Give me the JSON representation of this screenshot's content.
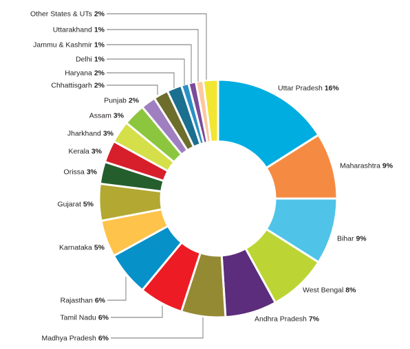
{
  "chart_data": {
    "type": "pie",
    "style": "donut",
    "title": "",
    "legend": "none",
    "grid": false,
    "slices": [
      {
        "label": "Uttar Pradesh",
        "value": 16,
        "display": "16%",
        "color": "#00ade0"
      },
      {
        "label": "Maharashtra",
        "value": 9,
        "display": "9%",
        "color": "#f58b42"
      },
      {
        "label": "Bihar",
        "value": 9,
        "display": "9%",
        "color": "#4fc4e8"
      },
      {
        "label": "West Bengal",
        "value": 8,
        "display": "8%",
        "color": "#bcd534"
      },
      {
        "label": "Andhra Pradesh",
        "value": 7,
        "display": "7%",
        "color": "#5b2d7c"
      },
      {
        "label": "Madhya Pradesh",
        "value": 6,
        "display": "6%",
        "color": "#958a34"
      },
      {
        "label": "Tamil Nadu",
        "value": 6,
        "display": "6%",
        "color": "#ed1c24"
      },
      {
        "label": "Rajasthan",
        "value": 6,
        "display": "6%",
        "color": "#0791c9"
      },
      {
        "label": "Karnataka",
        "value": 5,
        "display": "5%",
        "color": "#fdc34a"
      },
      {
        "label": "Gujarat",
        "value": 5,
        "display": "5%",
        "color": "#b3a831"
      },
      {
        "label": "Orissa",
        "value": 3,
        "display": "3%",
        "color": "#245e2c"
      },
      {
        "label": "Kerala",
        "value": 3,
        "display": "3%",
        "color": "#d71f2b"
      },
      {
        "label": "Jharkhand",
        "value": 3,
        "display": "3%",
        "color": "#d5df4a"
      },
      {
        "label": "Assam",
        "value": 3,
        "display": "3%",
        "color": "#8cc63f"
      },
      {
        "label": "Punjab",
        "value": 2,
        "display": "2%",
        "color": "#a07fc0"
      },
      {
        "label": "Chhattisgarh",
        "value": 2,
        "display": "2%",
        "color": "#6e6e2c"
      },
      {
        "label": "Haryana",
        "value": 2,
        "display": "2%",
        "color": "#1b6f8f"
      },
      {
        "label": "Delhi",
        "value": 1,
        "display": "1%",
        "color": "#2b8fc4"
      },
      {
        "label": "Jammu & Kashmir",
        "value": 1,
        "display": "1%",
        "color": "#7a4b9a"
      },
      {
        "label": "Uttarakhand",
        "value": 1,
        "display": "1%",
        "color": "#fbc8a0"
      },
      {
        "label": "Other States & UTs",
        "value": 2,
        "display": "2%",
        "color": "#f1e631"
      }
    ]
  }
}
